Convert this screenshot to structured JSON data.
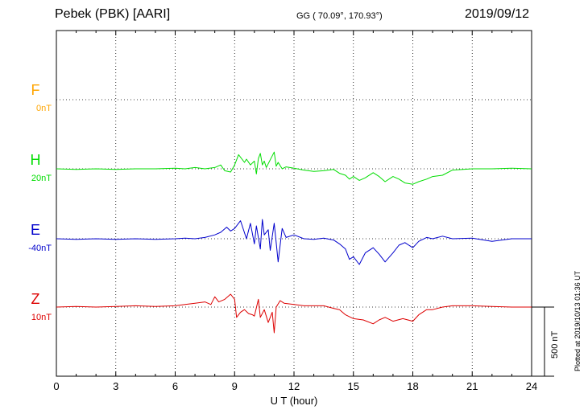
{
  "header": {
    "station": "Pebek (PBK)  [AARI]",
    "coords": "GG ( 70.09°, 170.93°)",
    "date": "2019/09/12"
  },
  "plotted_note": "Plotted at 2019/10/13 01:36 UT",
  "scale_label": "500 nT",
  "colors": {
    "F": "#ffa500",
    "H": "#00dd00",
    "E": "#0000cc",
    "Z": "#dd0000"
  },
  "chart_data": {
    "type": "line",
    "xlabel": "U T (hour)",
    "xlim": [
      0,
      24
    ],
    "xticks": [
      0,
      3,
      6,
      9,
      12,
      15,
      18,
      21,
      24
    ],
    "grid": true,
    "scale_bar_nT": 500,
    "series": [
      {
        "name": "F",
        "baseline_label": "0nT",
        "x": [],
        "y": []
      },
      {
        "name": "H",
        "baseline_label": "20nT",
        "x": [
          0,
          1,
          2,
          3,
          4,
          5,
          6,
          6.5,
          7,
          7.5,
          8,
          8.3,
          8.5,
          8.8,
          9,
          9.2,
          9.5,
          9.6,
          9.8,
          10,
          10.1,
          10.2,
          10.3,
          10.4,
          10.5,
          10.6,
          10.8,
          11,
          11.1,
          11.2,
          11.4,
          11.6,
          12,
          12.5,
          13,
          13.5,
          14,
          14.3,
          14.6,
          14.8,
          15,
          15.3,
          15.6,
          16,
          16.3,
          16.6,
          17,
          17.3,
          17.6,
          18,
          18.3,
          18.7,
          19,
          19.5,
          20,
          21,
          22,
          23,
          24
        ],
        "y": [
          0,
          -5,
          0,
          -5,
          0,
          0,
          5,
          0,
          10,
          0,
          10,
          30,
          -15,
          -25,
          30,
          110,
          50,
          75,
          30,
          60,
          -40,
          80,
          120,
          30,
          60,
          10,
          70,
          130,
          20,
          50,
          0,
          15,
          5,
          -10,
          -20,
          -15,
          -5,
          -35,
          -50,
          -80,
          -60,
          -90,
          -70,
          -30,
          -60,
          -100,
          -60,
          -80,
          -110,
          -120,
          -100,
          -80,
          -60,
          -50,
          -10,
          0,
          0,
          5,
          0
        ]
      },
      {
        "name": "E",
        "baseline_label": "-40nT",
        "x": [
          0,
          1,
          2,
          3,
          4,
          5,
          6,
          6.5,
          7,
          7.5,
          8,
          8.3,
          8.6,
          8.8,
          9,
          9.3,
          9.6,
          9.8,
          10,
          10.1,
          10.3,
          10.4,
          10.5,
          10.7,
          10.8,
          11,
          11.1,
          11.2,
          11.4,
          11.6,
          12,
          12.5,
          13,
          13.5,
          14,
          14.3,
          14.6,
          14.8,
          15,
          15.3,
          15.6,
          16,
          16.3,
          16.6,
          17,
          17.3,
          17.6,
          18,
          18.3,
          18.7,
          19,
          19.5,
          20,
          21,
          22,
          23,
          24
        ],
        "y": [
          0,
          -5,
          0,
          -5,
          0,
          -5,
          0,
          5,
          0,
          10,
          30,
          50,
          90,
          60,
          80,
          140,
          0,
          120,
          -40,
          100,
          -80,
          150,
          30,
          70,
          -90,
          120,
          -30,
          -180,
          80,
          10,
          30,
          0,
          -5,
          5,
          -10,
          -40,
          -80,
          -160,
          -140,
          -200,
          -110,
          -70,
          -120,
          -180,
          -110,
          -50,
          -30,
          -70,
          -20,
          10,
          0,
          20,
          0,
          5,
          -20,
          0,
          0
        ]
      },
      {
        "name": "Z",
        "baseline_label": "10nT",
        "x": [
          0,
          1,
          2,
          3,
          4,
          5,
          6,
          6.5,
          7,
          7.5,
          7.8,
          8,
          8.2,
          8.5,
          8.8,
          9,
          9.1,
          9.3,
          9.5,
          9.7,
          9.9,
          10,
          10.2,
          10.3,
          10.5,
          10.7,
          10.9,
          11,
          11.1,
          11.3,
          11.5,
          12,
          12.5,
          13,
          13.5,
          14,
          14.3,
          14.6,
          15,
          15.5,
          16,
          16.3,
          16.6,
          17,
          17.5,
          18,
          18.3,
          18.7,
          19,
          19.5,
          20,
          21,
          22,
          23,
          24
        ],
        "y": [
          0,
          5,
          0,
          5,
          10,
          5,
          10,
          20,
          30,
          40,
          20,
          80,
          40,
          60,
          100,
          60,
          -80,
          -40,
          -20,
          -50,
          -60,
          -70,
          60,
          -80,
          -20,
          -120,
          -40,
          -200,
          0,
          50,
          30,
          20,
          10,
          10,
          10,
          -10,
          -20,
          -60,
          -90,
          -100,
          -130,
          -100,
          -80,
          -110,
          -90,
          -110,
          -60,
          -20,
          -20,
          0,
          10,
          10,
          5,
          0,
          0
        ]
      }
    ]
  }
}
